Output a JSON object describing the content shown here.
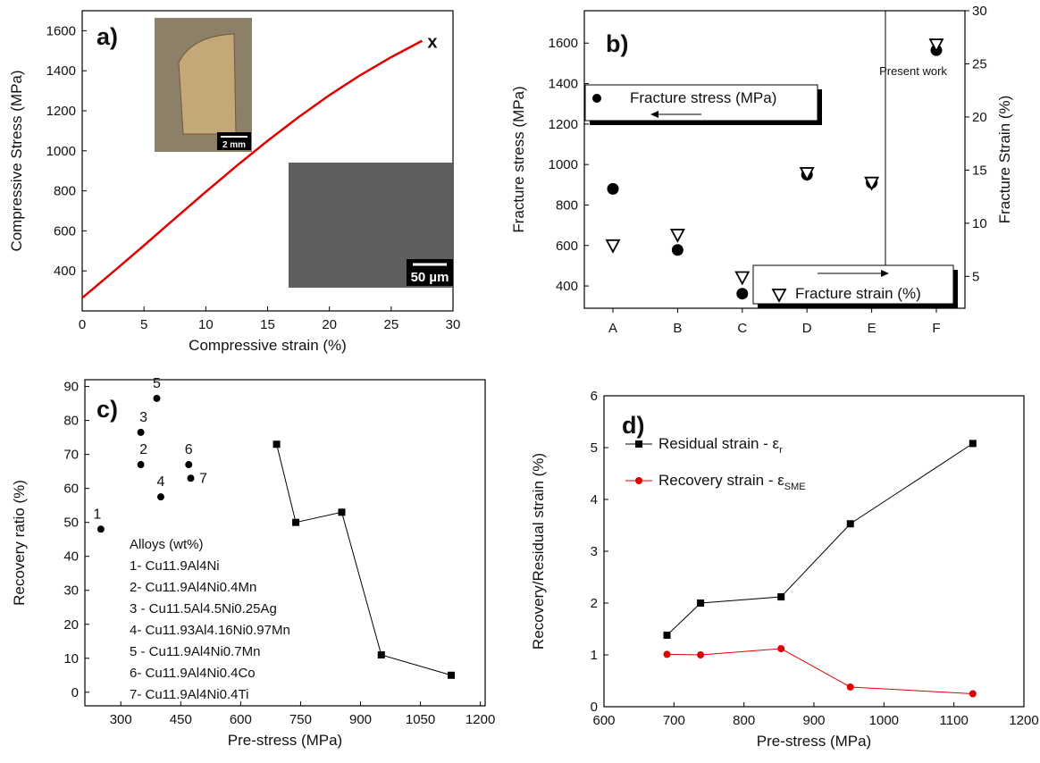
{
  "chart_data": [
    {
      "type": "line",
      "panel_label": "a)",
      "x_label": "Compressive strain (%)",
      "y_label": "Compressive Stress (MPa)",
      "xlim": [
        0,
        30
      ],
      "xticks": [
        0,
        5,
        10,
        15,
        20,
        25,
        30
      ],
      "ylim": [
        200,
        1700
      ],
      "yticks": [
        400,
        600,
        800,
        1000,
        1200,
        1400,
        1600
      ],
      "x": [
        0,
        2.5,
        5,
        7.5,
        10,
        12.5,
        15,
        17.5,
        20,
        22.5,
        25,
        27.5
      ],
      "series": [
        {
          "color": "#e00000",
          "line": true,
          "values": [
            265,
            395,
            527,
            662,
            795,
            925,
            1050,
            1168,
            1278,
            1378,
            1468,
            1550
          ]
        }
      ],
      "end_marker": "x",
      "insets": [
        {
          "scale_label": "2 mm"
        },
        {
          "scale_label": "50 µm"
        }
      ]
    },
    {
      "type": "scatter",
      "panel_label": "b)",
      "y_label": "Fracture stress (MPa)",
      "y2_label": "Fracture Strain (%)",
      "categories": [
        "A",
        "B",
        "C",
        "D",
        "E",
        "F"
      ],
      "ylim": [
        290,
        1760
      ],
      "yticks": [
        400,
        600,
        800,
        1000,
        1200,
        1400,
        1600
      ],
      "y2lim": [
        2,
        30
      ],
      "y2ticks": [
        5,
        10,
        15,
        20,
        25,
        30
      ],
      "series": [
        {
          "name": "Fracture stress (MPa)",
          "marker": "circle",
          "color": "#000000",
          "values": [
            880,
            578,
            362,
            950,
            910,
            1565
          ]
        },
        {
          "name": "Fracture strain (%)",
          "marker": "triangle-down",
          "color": "#000000",
          "axis": "y2",
          "values": [
            7.9,
            8.9,
            4.9,
            14.7,
            13.8,
            26.8
          ]
        }
      ],
      "annotation": "Present work"
    },
    {
      "type": "scatter",
      "panel_label": "c)",
      "x_label": "Pre-stress (MPa)",
      "y_label": "Recovery ratio (%)",
      "xlim": [
        210,
        1212
      ],
      "xticks": [
        300,
        450,
        600,
        750,
        900,
        1050,
        1200
      ],
      "ylim": [
        -4,
        92
      ],
      "yticks": [
        0,
        10,
        20,
        30,
        40,
        50,
        60,
        70,
        80,
        90
      ],
      "series": [
        {
          "marker": "circle",
          "color": "#000000",
          "x": [
            250,
            350,
            350,
            400,
            390,
            470,
            475
          ],
          "values": [
            48,
            67,
            76.5,
            57.5,
            86.5,
            67,
            63
          ],
          "point_labels": [
            "1",
            "2",
            "3",
            "4",
            "5",
            "6",
            "7"
          ]
        },
        {
          "marker": "square",
          "color": "#000000",
          "line": true,
          "x": [
            690,
            738,
            853,
            952,
            1127
          ],
          "values": [
            73,
            50,
            53,
            11,
            5
          ]
        }
      ],
      "legend_title": "Alloys (wt%)",
      "legend_items": [
        "1- Cu11.9Al4Ni",
        "2- Cu11.9Al4Ni0.4Mn",
        "3 - Cu11.5Al4.5Ni0.25Ag",
        "4- Cu11.93Al4.16Ni0.97Mn",
        "5 - Cu11.9Al4Ni0.7Mn",
        "6- Cu11.9Al4Ni0.4Co",
        "7- Cu11.9Al4Ni0.4Ti"
      ]
    },
    {
      "type": "line",
      "panel_label": "d)",
      "x_label": "Pre-stress (MPa)",
      "y_label": "Recovery/Residual strain (%)",
      "xlim": [
        600,
        1200
      ],
      "xticks": [
        600,
        700,
        800,
        900,
        1000,
        1100,
        1200
      ],
      "ylim": [
        0,
        6
      ],
      "yticks": [
        0,
        1,
        2,
        3,
        4,
        5,
        6
      ],
      "x": [
        690,
        738,
        853,
        952,
        1127
      ],
      "series": [
        {
          "name": "Residual strain - ε",
          "name_subscript": "r",
          "marker": "square",
          "color": "#000000",
          "line": true,
          "values": [
            1.38,
            2.0,
            2.12,
            3.53,
            5.08
          ]
        },
        {
          "name": "Recovery strain - ε",
          "name_subscript": "SME",
          "marker": "circle",
          "color": "#e00000",
          "line": true,
          "values": [
            1.01,
            1.0,
            1.12,
            0.38,
            0.25
          ]
        }
      ]
    }
  ]
}
